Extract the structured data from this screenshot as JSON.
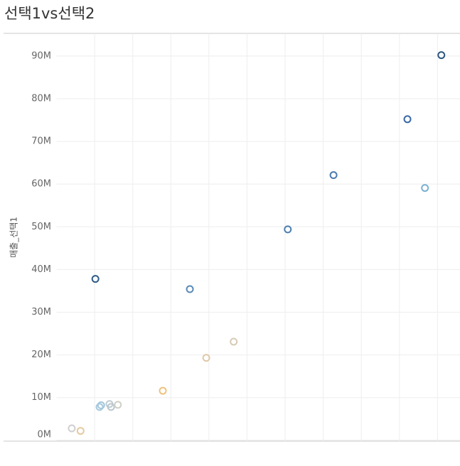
{
  "chart_data": {
    "type": "scatter",
    "title": "선택1vs선택2",
    "ylabel": "매출_선택1",
    "x": [
      10.2,
      35.0,
      60.7,
      72.7,
      92.1,
      101.0,
      96.7,
      46.5,
      39.3,
      27.9,
      11.3,
      11.7,
      13.9,
      14.3,
      16.1,
      4.0,
      6.3
    ],
    "values": [
      37.8,
      35.4,
      49.4,
      62.1,
      75.2,
      90.2,
      59.1,
      23.1,
      19.3,
      11.6,
      7.8,
      8.2,
      8.5,
      7.8,
      8.3,
      2.8,
      2.2
    ],
    "colors": [
      "#2e5a87",
      "#5a8ab5",
      "#4d7fb0",
      "#4a7bb0",
      "#3a6aa8",
      "#2b5580",
      "#7db0d4",
      "#d6cbb6",
      "#dfc8a8",
      "#eec27f",
      "#a7c9de",
      "#a3c6dc",
      "#bfccd4",
      "#bac7cc",
      "#cdd0c6",
      "#cfcfcf",
      "#e6c9a0"
    ],
    "xlim": [
      0,
      105.9
    ],
    "xticks": [
      10,
      20,
      30,
      40,
      50,
      60,
      70,
      80,
      90,
      100
    ],
    "ylim": [
      -0.2,
      95.3
    ],
    "yticks": [
      {
        "value": 0,
        "label": "0M"
      },
      {
        "value": 10,
        "label": "10M"
      },
      {
        "value": 20,
        "label": "20M"
      },
      {
        "value": 30,
        "label": "30M"
      },
      {
        "value": 40,
        "label": "40M"
      },
      {
        "value": 50,
        "label": "50M"
      },
      {
        "value": 60,
        "label": "60M"
      },
      {
        "value": 70,
        "label": "70M"
      },
      {
        "value": 80,
        "label": "80M"
      },
      {
        "value": 90,
        "label": "90M"
      }
    ],
    "grid": true
  }
}
